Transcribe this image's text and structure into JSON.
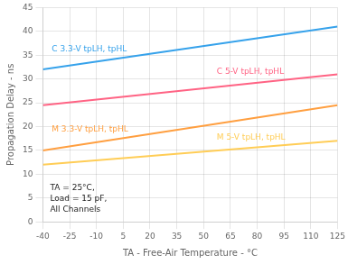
{
  "chart_data": {
    "type": "line",
    "x_label": "TA - Free-Air Temperature - °C",
    "y_label": "Propagation Delay - ns",
    "x": [
      -40,
      125
    ],
    "series": [
      {
        "name": "C 3.3-V tpLH, tpHL",
        "values": [
          32.0,
          41.0
        ]
      },
      {
        "name": "C 5-V tpLH, tpHL",
        "values": [
          24.5,
          31.0
        ]
      },
      {
        "name": "M 3.3-V tpLH, tpHL",
        "values": [
          15.0,
          24.5
        ]
      },
      {
        "name": "M 5-V tpLH, tpHL",
        "values": [
          12.0,
          17.0
        ]
      }
    ],
    "annotation": "TA = 25°C,\nLoad = 15 pF,\nAll Channels",
    "xlim": [
      -40,
      125
    ],
    "xticks": [
      -40,
      -25,
      -10,
      5,
      20,
      35,
      50,
      65,
      80,
      95,
      110,
      125
    ],
    "ylim": [
      0,
      45
    ],
    "yticks": [
      0,
      5,
      10,
      15,
      20,
      25,
      30,
      35,
      40,
      45
    ],
    "grid": true
  }
}
